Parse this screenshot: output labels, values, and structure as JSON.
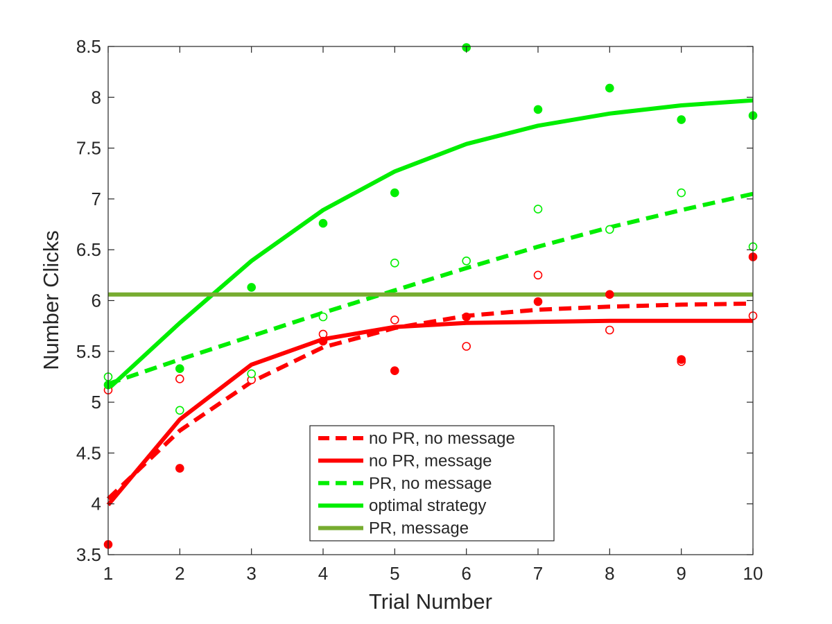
{
  "chart_data": {
    "type": "line",
    "title": "",
    "xlabel": "Trial Number",
    "ylabel": "Number Clicks",
    "xlim": [
      1,
      10
    ],
    "ylim": [
      3.5,
      8.5
    ],
    "xticks": [
      1,
      2,
      3,
      4,
      5,
      6,
      7,
      8,
      9,
      10
    ],
    "yticks": [
      3.5,
      4,
      4.5,
      5,
      5.5,
      6,
      6.5,
      7,
      7.5,
      8,
      8.5
    ],
    "grid": false,
    "legend_position": "bottom-center",
    "x": [
      1,
      2,
      3,
      4,
      5,
      6,
      7,
      8,
      9,
      10
    ],
    "series": [
      {
        "name": "no PR, no message",
        "color": "#ff0000",
        "line_style": "dashed",
        "fit": [
          4.05,
          4.72,
          5.2,
          5.54,
          5.73,
          5.85,
          5.91,
          5.94,
          5.96,
          5.97
        ],
        "marker": "open-circle",
        "observed": [
          5.12,
          5.23,
          5.22,
          5.67,
          5.81,
          5.55,
          6.25,
          5.71,
          5.4,
          5.85
        ]
      },
      {
        "name": "no PR, message",
        "color": "#ff0000",
        "line_style": "solid",
        "fit": [
          3.99,
          4.83,
          5.37,
          5.62,
          5.74,
          5.78,
          5.79,
          5.8,
          5.8,
          5.8
        ],
        "marker": "filled-circle",
        "observed": [
          3.6,
          4.35,
          null,
          5.6,
          5.31,
          5.84,
          5.99,
          6.06,
          5.42,
          6.43
        ]
      },
      {
        "name": "PR, no message",
        "color": "#00ee00",
        "line_style": "dashed",
        "fit": [
          5.18,
          5.42,
          5.65,
          5.88,
          6.1,
          6.32,
          6.53,
          6.72,
          6.89,
          7.05
        ],
        "marker": "open-circle",
        "observed": [
          5.25,
          4.92,
          5.28,
          5.84,
          6.37,
          6.39,
          6.9,
          6.7,
          7.06,
          6.53
        ]
      },
      {
        "name": "optimal strategy",
        "color": "#00ee00",
        "line_style": "solid",
        "fit": [
          5.13,
          5.78,
          6.39,
          6.89,
          7.27,
          7.54,
          7.72,
          7.84,
          7.92,
          7.97
        ],
        "marker": "filled-circle",
        "observed": [
          5.17,
          5.33,
          6.13,
          6.76,
          7.06,
          8.49,
          7.88,
          8.09,
          7.78,
          7.82
        ]
      },
      {
        "name": "PR, message",
        "color": "#77ac30",
        "line_style": "solid",
        "fit": [
          6.06,
          6.06,
          6.06,
          6.06,
          6.06,
          6.06,
          6.06,
          6.06,
          6.06,
          6.06
        ],
        "marker": "none",
        "observed": []
      }
    ]
  }
}
